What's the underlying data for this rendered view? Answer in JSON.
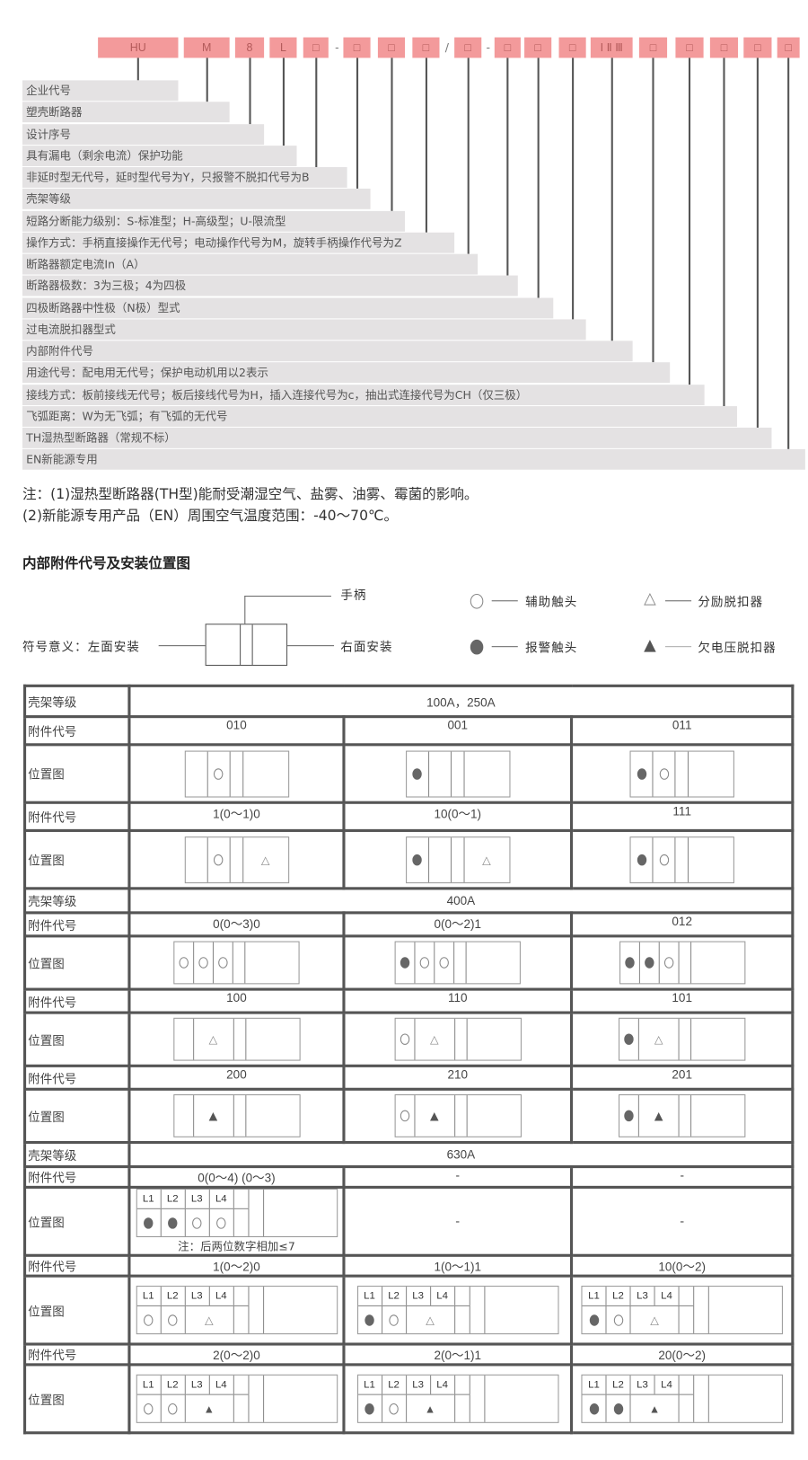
{
  "model_codes": [
    "HU",
    "M",
    "8",
    "L",
    "□",
    "□",
    "□",
    "□",
    "□",
    "□",
    "□",
    "□",
    "I Ⅱ Ⅲ",
    "□",
    "□",
    "□",
    "□",
    "□"
  ],
  "separators": [
    "-",
    "/",
    "-"
  ],
  "descriptions": [
    "企业代号",
    "塑壳断路器",
    "设计序号",
    "具有漏电（剩余电流）保护功能",
    "非延时型无代号，延时型代号为Y，只报警不脱扣代号为B",
    "壳架等级",
    "短路分断能力级别：S-标准型；H-高级型；U-限流型",
    "操作方式：手柄直接操作无代号；电动操作代号为M，旋转手柄操作代号为Z",
    "断路器额定电流In（A）",
    "断路器极数：3为三极；4为四极",
    "四极断路器中性极（N极）型式",
    "过电流脱扣器型式",
    "内部附件代号",
    "用途代号：配电用无代号；保护电动机用以2表示",
    "接线方式：板前接线无代号；板后接线代号为H，插入连接代号为c，抽出式连接代号为CH（仅三极）",
    "飞弧距离：W为无飞弧；有飞弧的无代号",
    "TH湿热型断路器（常规不标）",
    "EN新能源专用"
  ],
  "notes": [
    "注：(1)湿热型断路器(TH型)能耐受潮湿空气、盐雾、油雾、霉菌的影响。",
    "(2)新能源专用产品（EN）周围空气温度范围：-40～70℃。"
  ],
  "section_title": "内部附件代号及安装位置图",
  "legend": {
    "handle": "手柄",
    "left_install": "符号意义：左面安装",
    "right_install": "右面安装",
    "aux": "辅助触头",
    "alarm": "报警触头",
    "shunt": "分励脱扣器",
    "uv": "欠电压脱扣器"
  },
  "table": {
    "labels": {
      "frame": "壳架等级",
      "code": "附件代号",
      "diagram": "位置图"
    },
    "sections": [
      {
        "frame": "100A，250A",
        "type": "A",
        "groups": [
          {
            "codes": [
              "010",
              "001",
              "011"
            ],
            "diagrams": [
              {
                "cells": [
                  "",
                  "aux"
                ],
                "right": ""
              },
              {
                "cells": [
                  "alarm",
                  ""
                ],
                "right": ""
              },
              {
                "cells": [
                  "alarm",
                  "aux"
                ],
                "right": ""
              }
            ]
          },
          {
            "codes": [
              "1(0～1)0",
              "10(0～1)",
              "111"
            ],
            "diagrams": [
              {
                "cells": [
                  "",
                  "aux"
                ],
                "right": "shunt"
              },
              {
                "cells": [
                  "alarm",
                  ""
                ],
                "right": "shunt"
              },
              {
                "cells": [
                  "alarm",
                  "aux"
                ],
                "right": ""
              }
            ]
          }
        ]
      },
      {
        "frame": "400A",
        "type": "B",
        "groups": [
          {
            "codes": [
              "0(0～3)0",
              "0(0～2)1",
              "012"
            ],
            "diagrams": [
              {
                "cells": [
                  "aux",
                  "aux",
                  "aux"
                ]
              },
              {
                "cells": [
                  "alarm",
                  "aux",
                  "aux"
                ]
              },
              {
                "cells": [
                  "alarm",
                  "alarm",
                  "aux"
                ]
              }
            ]
          },
          {
            "codes": [
              "100",
              "110",
              "101"
            ],
            "diagrams": [
              {
                "cells": [
                  "",
                  "shunt"
                ]
              },
              {
                "cells": [
                  "aux",
                  "shunt"
                ]
              },
              {
                "cells": [
                  "alarm",
                  "shunt"
                ]
              }
            ]
          },
          {
            "codes": [
              "200",
              "210",
              "201"
            ],
            "diagrams": [
              {
                "cells": [
                  "",
                  "uv"
                ]
              },
              {
                "cells": [
                  "aux",
                  "uv"
                ]
              },
              {
                "cells": [
                  "alarm",
                  "uv"
                ]
              }
            ]
          }
        ]
      },
      {
        "frame": "630A",
        "type": "C",
        "groups": [
          {
            "codes": [
              "0(0～4) (0～3)",
              "-",
              "-"
            ],
            "diagrams": [
              {
                "labels": [
                  "L1",
                  "L2",
                  "L3",
                  "L4"
                ],
                "cells": [
                  "alarm",
                  "alarm",
                  "aux",
                  "aux"
                ],
                "note": "注：后两位数字相加≤7"
              },
              {
                "empty": "-"
              },
              {
                "empty": "-"
              }
            ]
          },
          {
            "codes": [
              "1(0～2)0",
              "1(0～1)1",
              "10(0～2)"
            ],
            "diagrams": [
              {
                "labels": [
                  "L1",
                  "L2",
                  "L3",
                  "L4"
                ],
                "cells": [
                  "aux",
                  "aux",
                  "shunt"
                ]
              },
              {
                "labels": [
                  "L1",
                  "L2",
                  "L3",
                  "L4"
                ],
                "cells": [
                  "alarm",
                  "aux",
                  "shunt"
                ]
              },
              {
                "labels": [
                  "L1",
                  "L2",
                  "L3",
                  "L4"
                ],
                "cells": [
                  "alarm",
                  "aux",
                  "shunt"
                ]
              }
            ]
          },
          {
            "codes": [
              "2(0～2)0",
              "2(0～1)1",
              "20(0～2)"
            ],
            "diagrams": [
              {
                "labels": [
                  "L1",
                  "L2",
                  "L3",
                  "L4"
                ],
                "cells": [
                  "aux",
                  "aux",
                  "uv"
                ]
              },
              {
                "labels": [
                  "L1",
                  "L2",
                  "L3",
                  "L4"
                ],
                "cells": [
                  "alarm",
                  "aux",
                  "uv"
                ]
              },
              {
                "labels": [
                  "L1",
                  "L2",
                  "L3",
                  "L4"
                ],
                "cells": [
                  "alarm",
                  "alarm",
                  "uv"
                ]
              }
            ]
          }
        ]
      }
    ]
  },
  "colors": {
    "code_box": "#f39a9b",
    "row_bg": "#e4e2e3",
    "border": "#555555"
  }
}
